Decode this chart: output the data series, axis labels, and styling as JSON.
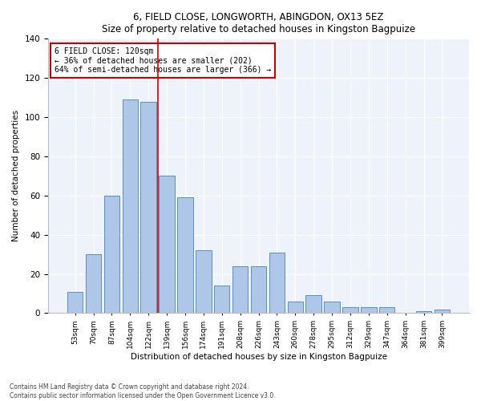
{
  "title1": "6, FIELD CLOSE, LONGWORTH, ABINGDON, OX13 5EZ",
  "title2": "Size of property relative to detached houses in Kingston Bagpuize",
  "xlabel": "Distribution of detached houses by size in Kingston Bagpuize",
  "ylabel": "Number of detached properties",
  "footer1": "Contains HM Land Registry data © Crown copyright and database right 2024.",
  "footer2": "Contains public sector information licensed under the Open Government Licence v3.0.",
  "annotation_line1": "6 FIELD CLOSE: 120sqm",
  "annotation_line2": "← 36% of detached houses are smaller (202)",
  "annotation_line3": "64% of semi-detached houses are larger (366) →",
  "bar_labels": [
    "53sqm",
    "70sqm",
    "87sqm",
    "104sqm",
    "122sqm",
    "139sqm",
    "156sqm",
    "174sqm",
    "191sqm",
    "208sqm",
    "226sqm",
    "243sqm",
    "260sqm",
    "278sqm",
    "295sqm",
    "312sqm",
    "329sqm",
    "347sqm",
    "364sqm",
    "381sqm",
    "399sqm"
  ],
  "bar_values": [
    11,
    30,
    60,
    109,
    108,
    70,
    59,
    32,
    14,
    24,
    24,
    31,
    6,
    9,
    6,
    3,
    3,
    3,
    0,
    1,
    2
  ],
  "bar_color": "#aec6e8",
  "bar_edge_color": "#5a8fc2",
  "reference_line_x": 4.5,
  "reference_line_color": "#cc0000",
  "annotation_box_color": "#cc0000",
  "background_color": "#eef2fb",
  "ylim": [
    0,
    140
  ],
  "yticks": [
    0,
    20,
    40,
    60,
    80,
    100,
    120,
    140
  ],
  "fig_width": 6.0,
  "fig_height": 5.0,
  "dpi": 100
}
